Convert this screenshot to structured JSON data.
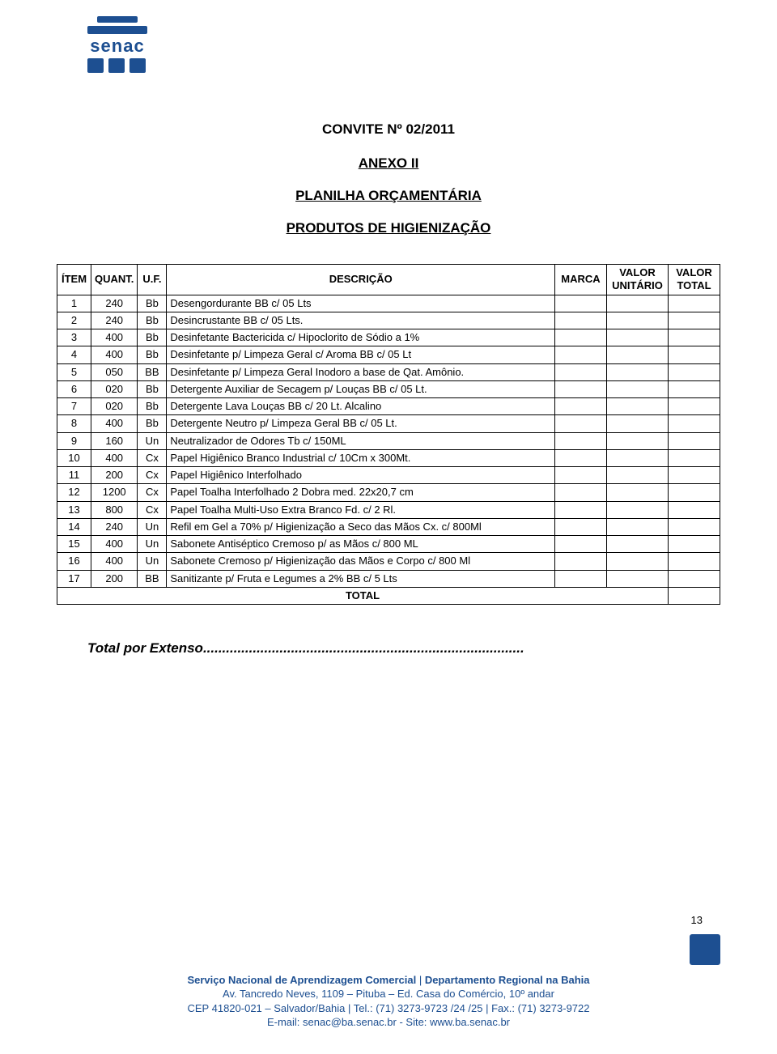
{
  "logo": {
    "text": "senac"
  },
  "headings": {
    "title": "CONVITE Nº 02/2011",
    "anexo": "ANEXO II",
    "planilha": "PLANILHA ORÇAMENTÁRIA",
    "produtos": "PRODUTOS DE HIGIENIZAÇÃO"
  },
  "table": {
    "columns": {
      "item": "ÍTEM",
      "quant": "QUANT.",
      "uf": "U.F.",
      "desc": "DESCRIÇÃO",
      "marca": "MARCA",
      "valor_unit": "VALOR UNITÁRIO",
      "valor_total": "VALOR TOTAL"
    },
    "rows": [
      {
        "item": "1",
        "quant": "240",
        "uf": "Bb",
        "desc": "Desengordurante BB c/ 05 Lts"
      },
      {
        "item": "2",
        "quant": "240",
        "uf": "Bb",
        "desc": "Desincrustante BB c/ 05 Lts."
      },
      {
        "item": "3",
        "quant": "400",
        "uf": "Bb",
        "desc": "Desinfetante  Bactericida c/ Hipoclorito de Sódio a 1%"
      },
      {
        "item": "4",
        "quant": "400",
        "uf": "Bb",
        "desc": "Desinfetante p/ Limpeza Geral c/ Aroma BB c/ 05 Lt"
      },
      {
        "item": "5",
        "quant": "050",
        "uf": "BB",
        "desc": "Desinfetante p/ Limpeza Geral Inodoro a base de Qat. Amônio."
      },
      {
        "item": "6",
        "quant": "020",
        "uf": "Bb",
        "desc": "Detergente Auxiliar de Secagem p/ Louças BB c/ 05 Lt."
      },
      {
        "item": "7",
        "quant": "020",
        "uf": "Bb",
        "desc": "Detergente Lava Louças BB c/ 20 Lt. Alcalino"
      },
      {
        "item": "8",
        "quant": "400",
        "uf": "Bb",
        "desc": "Detergente Neutro p/ Limpeza Geral BB c/ 05 Lt."
      },
      {
        "item": "9",
        "quant": "160",
        "uf": "Un",
        "desc": "Neutralizador de Odores Tb c/ 150ML"
      },
      {
        "item": "10",
        "quant": "400",
        "uf": "Cx",
        "desc": "Papel Higiênico Branco Industrial c/ 10Cm x 300Mt."
      },
      {
        "item": "11",
        "quant": "200",
        "uf": "Cx",
        "desc": "Papel Higiênico Interfolhado"
      },
      {
        "item": "12",
        "quant": "1200",
        "uf": "Cx",
        "desc": "Papel Toalha Interfolhado 2 Dobra med. 22x20,7 cm"
      },
      {
        "item": "13",
        "quant": "800",
        "uf": "Cx",
        "desc": "Papel Toalha Multi-Uso Extra Branco Fd. c/ 2 Rl."
      },
      {
        "item": "14",
        "quant": "240",
        "uf": "Un",
        "desc": "Refil em Gel a 70% p/ Higienização a Seco das Mãos Cx. c/ 800Ml"
      },
      {
        "item": "15",
        "quant": "400",
        "uf": "Un",
        "desc": "Sabonete Antiséptico Cremoso p/ as Mãos c/ 800 ML"
      },
      {
        "item": "16",
        "quant": "400",
        "uf": "Un",
        "desc": "Sabonete Cremoso p/ Higienização das Mãos e Corpo c/ 800 Ml"
      },
      {
        "item": "17",
        "quant": "200",
        "uf": "BB",
        "desc": "Sanitizante p/ Fruta e Legumes a 2% BB c/ 5 Lts"
      }
    ],
    "total_label": "TOTAL"
  },
  "extenso": "Total por Extenso....................................................................................",
  "page_number": "13",
  "footer": {
    "l1a": "Serviço Nacional de Aprendizagem Comercial",
    "l1b": " | ",
    "l1c": "Departamento Regional na Bahia",
    "l2": "Av. Tancredo Neves, 1109 – Pituba – Ed. Casa do Comércio, 10º andar",
    "l3": "CEP 41820-021 – Salvador/Bahia | Tel.: (71) 3273-9723 /24 /25 | Fax.: (71) 3273-9722",
    "l4": "E-mail: senac@ba.senac.br    -    Site: www.ba.senac.br"
  },
  "colors": {
    "brand_blue": "#1d4f91",
    "text": "#000000",
    "background": "#ffffff"
  }
}
